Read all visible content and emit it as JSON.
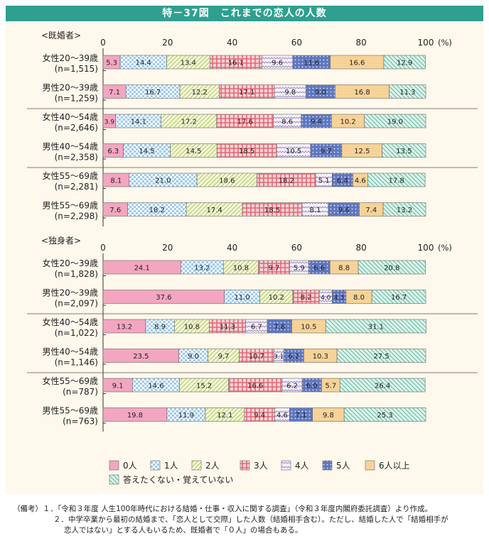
{
  "title": "特－37図　これまでの恋人の人数",
  "chart_data": {
    "type": "stacked-bar-horizontal",
    "categories": [
      "0人",
      "1人",
      "2人",
      "3人",
      "4人",
      "5人",
      "6人以上",
      "答えたくない・覚えていない"
    ],
    "xlim": [
      0,
      100
    ],
    "x_ticks": [
      "0",
      "20",
      "40",
      "60",
      "80",
      "100"
    ],
    "x_unit": "(%)",
    "panels": [
      {
        "label": "<既婚者>",
        "rows": [
          {
            "label": "女性20～39歳",
            "n": "(n=1,515)",
            "values": [
              5.3,
              14.4,
              13.4,
              16.1,
              9.6,
              11.6,
              16.6,
              12.9
            ]
          },
          {
            "label": "男性20～39歳",
            "n": "(n=1,259)",
            "values": [
              7.1,
              16.7,
              12.2,
              17.1,
              9.8,
              9.0,
              16.8,
              11.3
            ]
          },
          {
            "label": "女性40～54歳",
            "n": "(n=2,646)",
            "values": [
              3.9,
              14.1,
              17.2,
              17.6,
              8.6,
              9.4,
              10.2,
              19.0
            ]
          },
          {
            "label": "男性40～54歳",
            "n": "(n=2,358)",
            "values": [
              6.3,
              14.5,
              14.5,
              18.5,
              10.5,
              9.7,
              12.5,
              13.5
            ]
          },
          {
            "label": "女性55～69歳",
            "n": "(n=2,281)",
            "values": [
              8.1,
              21.0,
              18.6,
              18.2,
              5.1,
              6.4,
              4.6,
              17.8
            ]
          },
          {
            "label": "男性55～69歳",
            "n": "(n=2,298)",
            "values": [
              7.6,
              18.2,
              17.4,
              18.5,
              8.1,
              9.6,
              7.4,
              13.2
            ]
          }
        ]
      },
      {
        "label": "<独身者>",
        "rows": [
          {
            "label": "女性20～39歳",
            "n": "(n=1,828)",
            "values": [
              24.1,
              13.2,
              10.8,
              9.7,
              5.9,
              6.6,
              8.8,
              20.8
            ]
          },
          {
            "label": "男性20～39歳",
            "n": "(n=2,097)",
            "values": [
              37.6,
              11.0,
              10.2,
              8.2,
              4.0,
              4.3,
              8.0,
              16.7
            ]
          },
          {
            "label": "女性40～54歳",
            "n": "(n=1,022)",
            "values": [
              13.2,
              8.9,
              10.8,
              11.3,
              6.7,
              7.6,
              10.5,
              31.1
            ]
          },
          {
            "label": "男性40～54歳",
            "n": "(n=1,146)",
            "values": [
              23.5,
              9.0,
              9.7,
              10.7,
              3.1,
              6.2,
              10.3,
              27.5
            ]
          },
          {
            "label": "女性55～69歳",
            "n": "(n=787)",
            "values": [
              9.1,
              14.6,
              15.2,
              16.6,
              6.2,
              6.0,
              5.7,
              26.4
            ]
          },
          {
            "label": "男性55～69歳",
            "n": "(n=763)",
            "values": [
              19.8,
              11.9,
              12.1,
              9.4,
              4.6,
              7.1,
              9.8,
              25.3
            ]
          }
        ]
      }
    ],
    "colors": [
      "#f3a6c0",
      "#bfe0f5",
      "#e7f0c0",
      "#f2a2a8",
      "#ece6f4",
      "#6f86c8",
      "#f8d9a0",
      "#bfe6da"
    ],
    "legend_position": "bottom"
  },
  "notes": {
    "line1": "（備考）１．「令和３年度 人生100年時代における結婚・仕事・収入に関する調査」（令和３年度内閣府委託調査）より作成。",
    "line2": "２．中学卒業から最初の結婚まで、「恋人として交際」した人数（結婚相手含む）。ただし、結婚した人で「結婚相手が",
    "line3": "恋人ではない」とする人もいるため、既婚者で「０人」の場合もある。"
  }
}
